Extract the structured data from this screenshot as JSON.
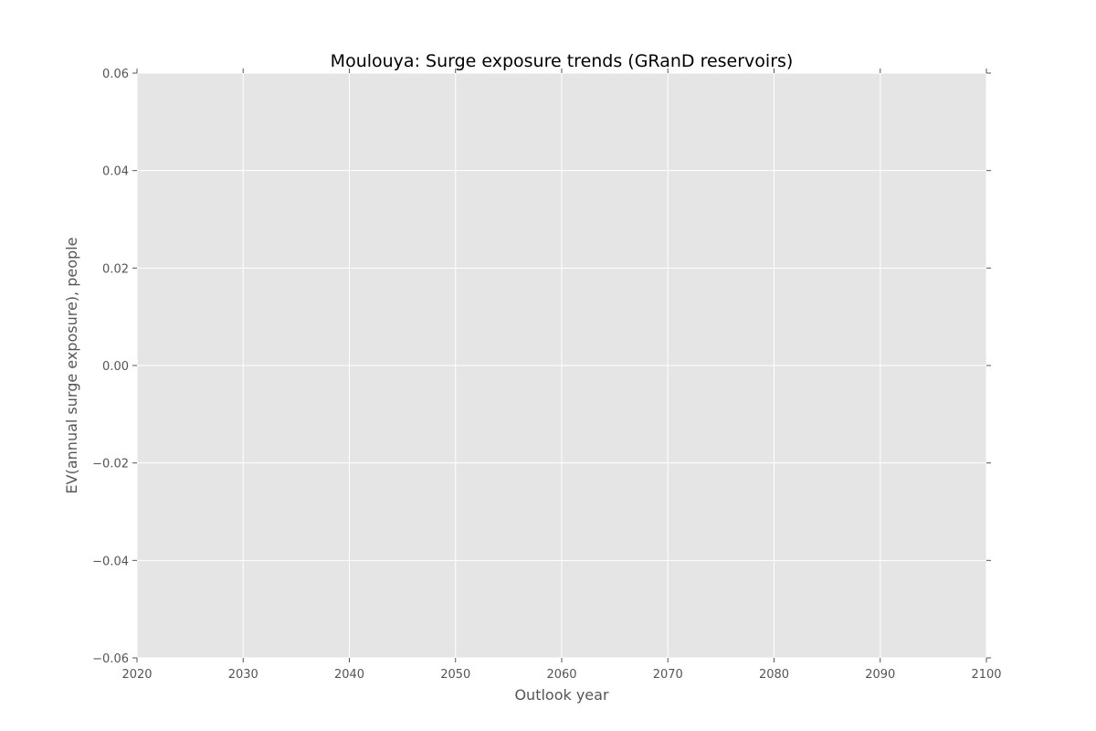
{
  "chart_data": {
    "type": "line",
    "title": "Moulouya: Surge exposure trends (GRanD reservoirs)",
    "xlabel": "Outlook year",
    "ylabel": "EV(annual surge exposure), people",
    "xlim": [
      2020,
      2100
    ],
    "ylim": [
      -0.06,
      0.06
    ],
    "xticks": [
      2020,
      2030,
      2040,
      2050,
      2060,
      2070,
      2080,
      2090,
      2100
    ],
    "xtick_labels": [
      "2020",
      "2030",
      "2040",
      "2050",
      "2060",
      "2070",
      "2080",
      "2090",
      "2100"
    ],
    "yticks": [
      -0.06,
      -0.04,
      -0.02,
      0.0,
      0.02,
      0.04,
      0.06
    ],
    "ytick_labels": [
      "−0.06",
      "−0.04",
      "−0.02",
      "0.00",
      "0.02",
      "0.04",
      "0.06"
    ],
    "grid": true,
    "series": []
  },
  "colors": {
    "plot_background": "#e5e5e5",
    "grid": "#ffffff",
    "text": "#555555",
    "title": "#000000"
  }
}
